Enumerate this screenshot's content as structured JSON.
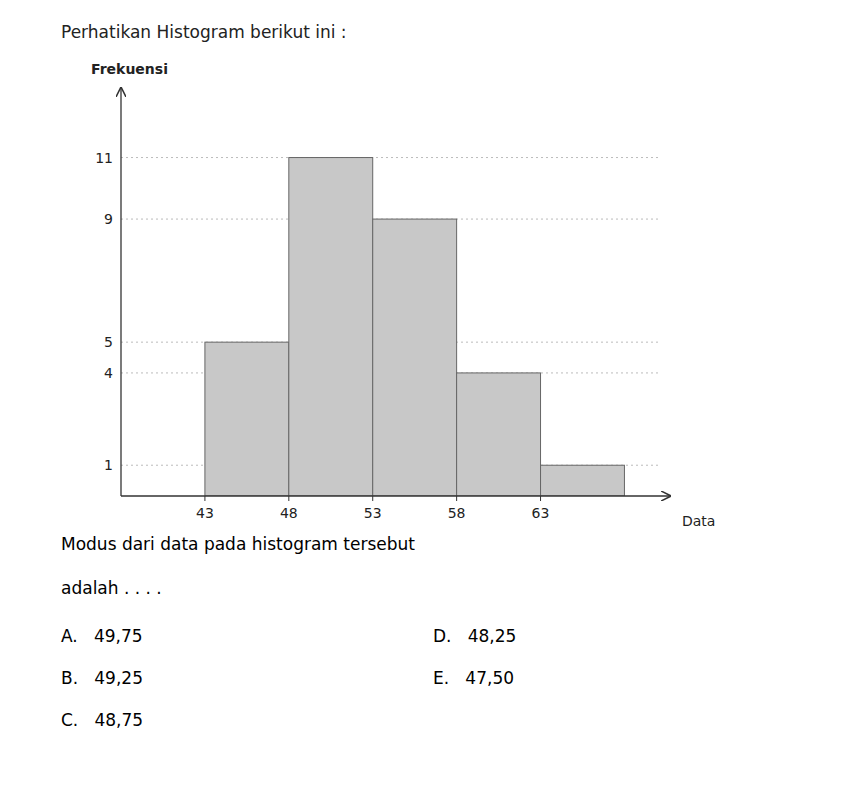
{
  "chart_data": {
    "type": "histogram",
    "title": "Perhatikan Histogram berikut ini :",
    "xlabel": "Data",
    "ylabel": "Frekuensi",
    "bins": [
      43,
      48,
      53,
      58,
      63,
      68
    ],
    "values": [
      5,
      11,
      9,
      4,
      1
    ],
    "color": "#c8c8c8",
    "xlim": [
      38,
      70
    ],
    "ylim": [
      0,
      13
    ],
    "xticks": [
      43,
      48,
      53,
      58,
      63
    ],
    "yticks": [
      1,
      4,
      5,
      9,
      11
    ],
    "grid": true,
    "annotations": [
      "Modus dari data pada histogram tersebut",
      "adalah . . . .",
      "A.   49,75",
      "B.   49,25",
      "C.   48,75",
      "D.   48,25",
      "E.   47,50"
    ]
  }
}
